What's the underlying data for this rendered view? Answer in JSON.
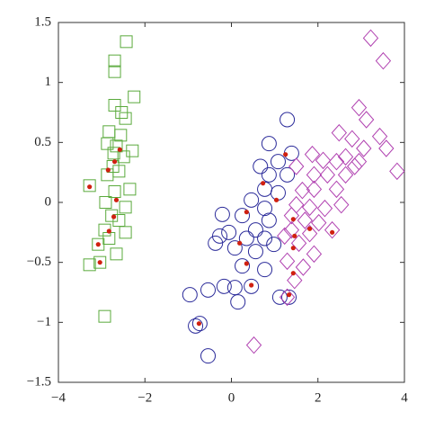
{
  "chart_data": {
    "type": "scatter",
    "xlim": [
      -4,
      4
    ],
    "ylim": [
      -1.5,
      1.5
    ],
    "xticks": [
      {
        "value": -4,
        "label": "−4"
      },
      {
        "value": -2,
        "label": "−2"
      },
      0,
      2,
      4
    ],
    "yticks": [
      {
        "value": -1.5,
        "label": "−1.5"
      },
      {
        "value": -1,
        "label": "−1"
      },
      {
        "value": -0.5,
        "label": "−0.5"
      },
      0,
      0.5,
      1,
      1.5
    ],
    "grid": false,
    "series": [
      {
        "color": "#5aaa3c",
        "marker": "square",
        "x": [
          -2.43,
          -2.7,
          -2.7,
          -2.25,
          -2.7,
          -2.54,
          -2.45,
          -2.83,
          -2.56,
          -2.29,
          -2.87,
          -2.66,
          -2.72,
          -2.49,
          -2.74,
          -2.6,
          -2.87,
          -3.28,
          -2.35,
          -2.7,
          -2.91,
          -2.45,
          -2.77,
          -2.6,
          -2.93,
          -2.45,
          -2.83,
          -3.08,
          -2.66,
          -3.28,
          -3.04,
          -2.93
        ],
        "y": [
          1.34,
          1.18,
          1.09,
          0.88,
          0.81,
          0.75,
          0.7,
          0.59,
          0.56,
          0.43,
          0.49,
          0.47,
          0.41,
          0.38,
          0.3,
          0.26,
          0.23,
          0.14,
          0.11,
          0.09,
          0.0,
          -0.04,
          -0.11,
          -0.15,
          -0.23,
          -0.25,
          -0.3,
          -0.35,
          -0.43,
          -0.52,
          -0.5,
          -0.95
        ]
      },
      {
        "color": "#2b2b9a",
        "marker": "circle",
        "x": [
          1.29,
          0.87,
          1.39,
          1.08,
          0.67,
          0.87,
          1.29,
          0.77,
          1.08,
          0.46,
          0.77,
          -0.21,
          0.25,
          0.87,
          0.56,
          -0.06,
          -0.27,
          0.35,
          0.77,
          0.98,
          -0.37,
          0.08,
          0.56,
          0.25,
          0.77,
          -0.17,
          0.08,
          0.46,
          -0.54,
          1.12,
          -0.96,
          0.15,
          1.33,
          -0.73,
          -0.83,
          -0.54
        ],
        "y": [
          0.69,
          0.49,
          0.41,
          0.34,
          0.3,
          0.23,
          0.23,
          0.11,
          0.08,
          0.02,
          -0.05,
          -0.1,
          -0.11,
          -0.15,
          -0.23,
          -0.25,
          -0.28,
          -0.3,
          -0.3,
          -0.35,
          -0.34,
          -0.38,
          -0.41,
          -0.53,
          -0.56,
          -0.7,
          -0.71,
          -0.7,
          -0.73,
          -0.79,
          -0.77,
          -0.83,
          -0.79,
          -1.01,
          -1.03,
          -1.28
        ]
      },
      {
        "color": "#b040b0",
        "marker": "diamond",
        "x": [
          3.22,
          3.51,
          2.95,
          3.12,
          2.49,
          2.79,
          3.43,
          3.58,
          3.06,
          1.87,
          2.12,
          2.43,
          2.64,
          2.85,
          3.83,
          1.5,
          1.91,
          2.22,
          2.64,
          2.95,
          1.91,
          1.64,
          2.43,
          1.5,
          1.81,
          2.16,
          2.54,
          1.39,
          1.7,
          2.02,
          2.33,
          1.39,
          1.81,
          1.23,
          1.56,
          1.91,
          1.29,
          1.66,
          1.46,
          1.29,
          0.52
        ],
        "y": [
          1.37,
          1.18,
          0.79,
          0.69,
          0.58,
          0.53,
          0.55,
          0.45,
          0.45,
          0.4,
          0.35,
          0.34,
          0.38,
          0.3,
          0.26,
          0.3,
          0.23,
          0.23,
          0.23,
          0.34,
          0.11,
          0.1,
          0.11,
          -0.02,
          -0.04,
          -0.05,
          -0.02,
          -0.11,
          -0.15,
          -0.17,
          -0.23,
          -0.23,
          -0.26,
          -0.28,
          -0.34,
          -0.43,
          -0.49,
          -0.54,
          -0.65,
          -0.79,
          -1.19
        ]
      },
      {
        "color": "#d02010",
        "marker": "dot",
        "x": [
          -2.58,
          -2.7,
          -2.85,
          -3.28,
          -2.66,
          -2.72,
          -2.83,
          -3.08,
          -3.04,
          1.25,
          0.73,
          1.04,
          0.35,
          0.19,
          0.35,
          0.46,
          -0.75,
          1.33,
          1.43,
          1.46,
          1.81,
          2.33,
          1.43,
          1.43
        ],
        "y": [
          0.44,
          0.34,
          0.27,
          0.13,
          0.02,
          -0.12,
          -0.24,
          -0.35,
          -0.5,
          0.4,
          0.16,
          0.02,
          -0.08,
          -0.34,
          -0.51,
          -0.69,
          -1.01,
          -0.77,
          -0.14,
          -0.28,
          -0.22,
          -0.25,
          -0.38,
          -0.59
        ]
      }
    ]
  }
}
